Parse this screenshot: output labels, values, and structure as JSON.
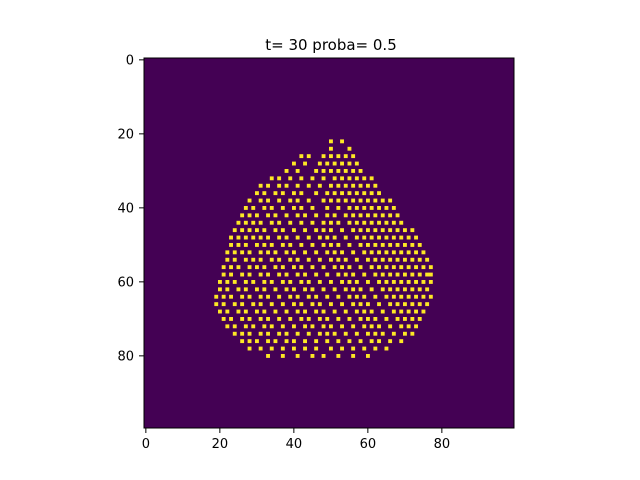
{
  "chart_data": {
    "type": "heatmap",
    "title": "t= 30 proba= 0.5",
    "xlabel": "",
    "ylabel": "",
    "grid": false,
    "grid_size": [
      100,
      100
    ],
    "xlim": [
      -0.5,
      99.5
    ],
    "ylim": [
      99.5,
      -0.5
    ],
    "x_ticks": [
      0,
      20,
      40,
      60,
      80
    ],
    "y_ticks": [
      0,
      20,
      40,
      60,
      80
    ],
    "x_tick_labels": [
      "0",
      "20",
      "40",
      "60",
      "80"
    ],
    "y_tick_labels": [
      "0",
      "20",
      "40",
      "60",
      "80"
    ],
    "colormap": "viridis",
    "colors": {
      "empty": "#440154",
      "occupied": "#fde725"
    },
    "occupied_cell_fraction_estimate": 0.5,
    "cluster_rows": [
      {
        "row": 22,
        "x": [
          50,
          53
        ]
      },
      {
        "row": 24,
        "x": [
          50,
          55
        ]
      },
      {
        "row": 26,
        "x": [
          42,
          44,
          48,
          50,
          52,
          54,
          56
        ]
      },
      {
        "row": 28,
        "x": [
          40,
          43,
          47,
          49,
          51,
          53,
          55,
          57
        ]
      },
      {
        "row": 30,
        "x": [
          38,
          41,
          46,
          48,
          50,
          52,
          54,
          56,
          58
        ]
      },
      {
        "row": 32,
        "x": [
          34,
          36,
          39,
          42,
          45,
          48,
          51,
          53,
          55,
          57,
          59,
          61
        ]
      },
      {
        "row": 34,
        "x": [
          31,
          33,
          36,
          38,
          41,
          44,
          47,
          50,
          52,
          54,
          56,
          58,
          60,
          62
        ]
      },
      {
        "row": 36,
        "x": [
          30,
          32,
          35,
          37,
          40,
          42,
          46,
          49,
          51,
          53,
          55,
          57,
          59,
          61,
          63
        ]
      },
      {
        "row": 38,
        "x": [
          28,
          31,
          33,
          36,
          39,
          41,
          44,
          48,
          50,
          52,
          54,
          56,
          58,
          60,
          62,
          64,
          66
        ]
      },
      {
        "row": 40,
        "x": [
          27,
          29,
          32,
          34,
          37,
          40,
          42,
          45,
          49,
          52,
          55,
          57,
          59,
          61,
          63,
          65,
          67
        ]
      },
      {
        "row": 42,
        "x": [
          26,
          28,
          30,
          33,
          35,
          38,
          41,
          43,
          46,
          49,
          51,
          54,
          56,
          58,
          60,
          62,
          64,
          66,
          68
        ]
      },
      {
        "row": 44,
        "x": [
          25,
          27,
          29,
          31,
          34,
          36,
          39,
          42,
          45,
          48,
          50,
          52,
          55,
          57,
          59,
          61,
          63,
          65,
          67,
          69
        ]
      },
      {
        "row": 46,
        "x": [
          24,
          26,
          28,
          30,
          32,
          35,
          37,
          40,
          43,
          46,
          48,
          50,
          53,
          56,
          58,
          60,
          62,
          64,
          66,
          68,
          70,
          72
        ]
      },
      {
        "row": 48,
        "x": [
          23,
          25,
          27,
          29,
          31,
          33,
          36,
          38,
          41,
          44,
          47,
          49,
          51,
          54,
          57,
          59,
          61,
          63,
          65,
          67,
          69,
          71,
          73
        ]
      },
      {
        "row": 50,
        "x": [
          23,
          25,
          27,
          30,
          32,
          34,
          37,
          39,
          42,
          45,
          48,
          50,
          52,
          55,
          58,
          60,
          62,
          64,
          66,
          68,
          70,
          72,
          74
        ]
      },
      {
        "row": 52,
        "x": [
          22,
          24,
          26,
          28,
          31,
          33,
          35,
          38,
          40,
          43,
          46,
          49,
          51,
          53,
          56,
          59,
          61,
          63,
          65,
          67,
          69,
          71,
          73,
          75
        ]
      },
      {
        "row": 54,
        "x": [
          22,
          24,
          27,
          29,
          31,
          34,
          36,
          39,
          41,
          44,
          47,
          50,
          52,
          54,
          57,
          60,
          62,
          64,
          66,
          68,
          70,
          72,
          74,
          76
        ]
      },
      {
        "row": 56,
        "x": [
          21,
          23,
          25,
          28,
          30,
          32,
          35,
          37,
          40,
          42,
          45,
          48,
          51,
          53,
          55,
          58,
          61,
          63,
          65,
          67,
          69,
          71,
          73,
          75,
          77
        ]
      },
      {
        "row": 58,
        "x": [
          21,
          23,
          26,
          28,
          31,
          33,
          36,
          38,
          41,
          43,
          46,
          49,
          52,
          54,
          56,
          59,
          62,
          64,
          66,
          68,
          70,
          72,
          74,
          76,
          77
        ]
      },
      {
        "row": 60,
        "x": [
          20,
          22,
          24,
          27,
          29,
          32,
          34,
          37,
          39,
          42,
          44,
          47,
          50,
          53,
          55,
          57,
          60,
          63,
          65,
          67,
          69,
          71,
          73,
          75,
          77
        ]
      },
      {
        "row": 62,
        "x": [
          20,
          22,
          25,
          27,
          30,
          32,
          35,
          38,
          40,
          43,
          45,
          48,
          51,
          54,
          56,
          58,
          61,
          64,
          66,
          68,
          70,
          72,
          74,
          76
        ]
      },
      {
        "row": 64,
        "x": [
          19,
          21,
          23,
          26,
          28,
          31,
          33,
          36,
          39,
          41,
          44,
          46,
          49,
          52,
          55,
          57,
          59,
          62,
          65,
          67,
          69,
          71,
          73,
          75,
          77
        ]
      },
      {
        "row": 66,
        "x": [
          19,
          21,
          24,
          26,
          29,
          31,
          34,
          37,
          40,
          42,
          45,
          47,
          50,
          53,
          56,
          58,
          60,
          63,
          66,
          68,
          70,
          72,
          74,
          76
        ]
      },
      {
        "row": 68,
        "x": [
          20,
          22,
          25,
          27,
          30,
          32,
          35,
          38,
          41,
          43,
          46,
          48,
          51,
          54,
          57,
          59,
          61,
          64,
          67,
          69,
          71,
          73,
          75
        ]
      },
      {
        "row": 70,
        "x": [
          21,
          23,
          26,
          28,
          31,
          33,
          36,
          39,
          42,
          44,
          47,
          49,
          52,
          55,
          58,
          60,
          62,
          65,
          68,
          70,
          72,
          74
        ]
      },
      {
        "row": 72,
        "x": [
          22,
          24,
          27,
          29,
          32,
          34,
          37,
          40,
          43,
          45,
          48,
          50,
          53,
          56,
          59,
          61,
          63,
          66,
          69,
          71,
          73
        ]
      },
      {
        "row": 74,
        "x": [
          24,
          26,
          28,
          31,
          33,
          36,
          38,
          41,
          44,
          47,
          49,
          51,
          54,
          57,
          60,
          62,
          64,
          67,
          70,
          72
        ]
      },
      {
        "row": 76,
        "x": [
          26,
          28,
          30,
          33,
          35,
          38,
          40,
          43,
          46,
          49,
          52,
          55,
          58,
          61,
          63,
          66,
          69
        ]
      },
      {
        "row": 78,
        "x": [
          28,
          31,
          34,
          37,
          40,
          43,
          46,
          50,
          53,
          56,
          59,
          62,
          65
        ]
      },
      {
        "row": 80,
        "x": [
          33,
          37,
          41,
          45,
          48,
          52,
          56,
          60
        ]
      }
    ]
  }
}
